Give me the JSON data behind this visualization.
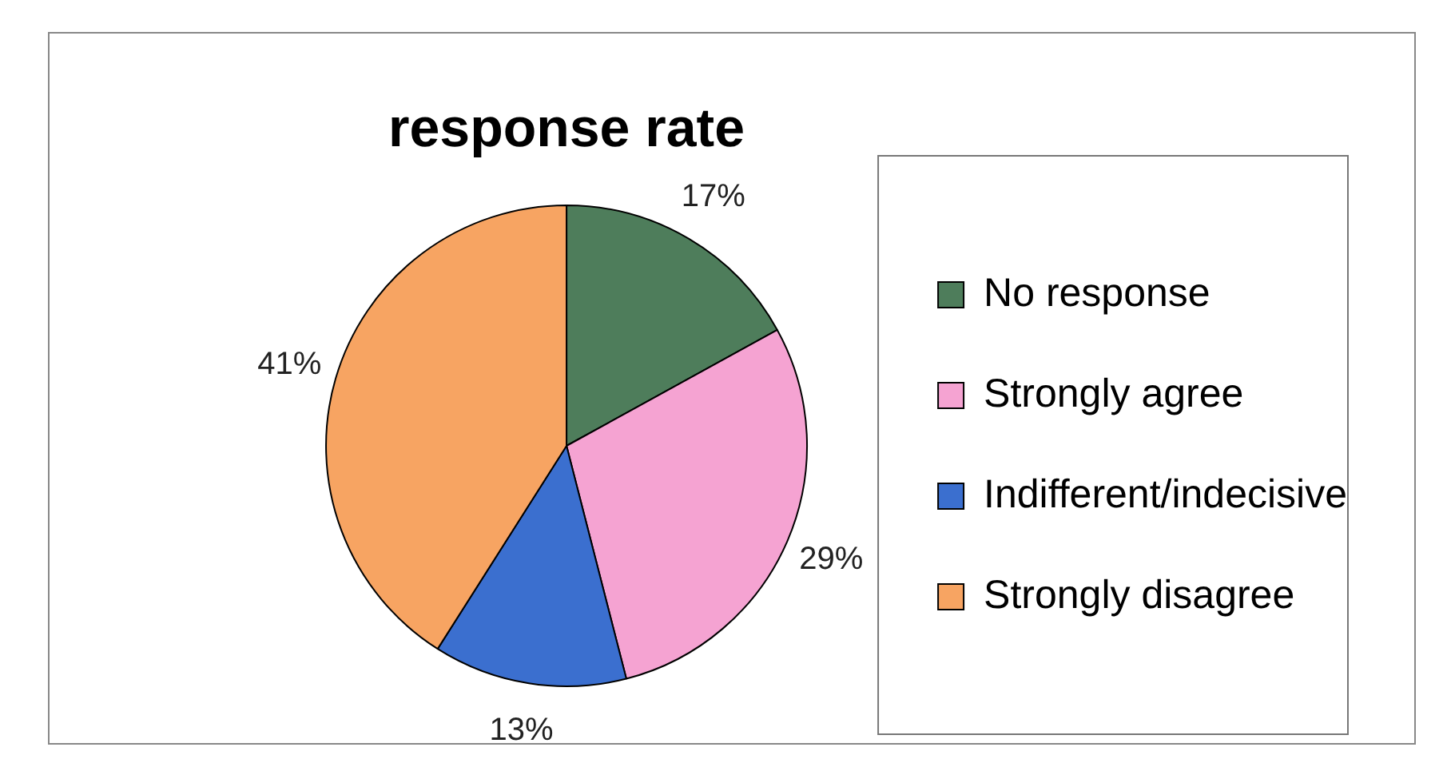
{
  "chart_data": {
    "type": "pie",
    "title": "response rate",
    "categories": [
      "No response",
      "Strongly agree",
      "Indifferent/indecisive",
      "Strongly disagree"
    ],
    "values": [
      17,
      29,
      13,
      41
    ],
    "colors": [
      "#4e7d5b",
      "#f5a3d2",
      "#3b6fcf",
      "#f7a462"
    ],
    "value_labels": [
      "17%",
      "29%",
      "13%",
      "41%"
    ],
    "legend": "right"
  }
}
